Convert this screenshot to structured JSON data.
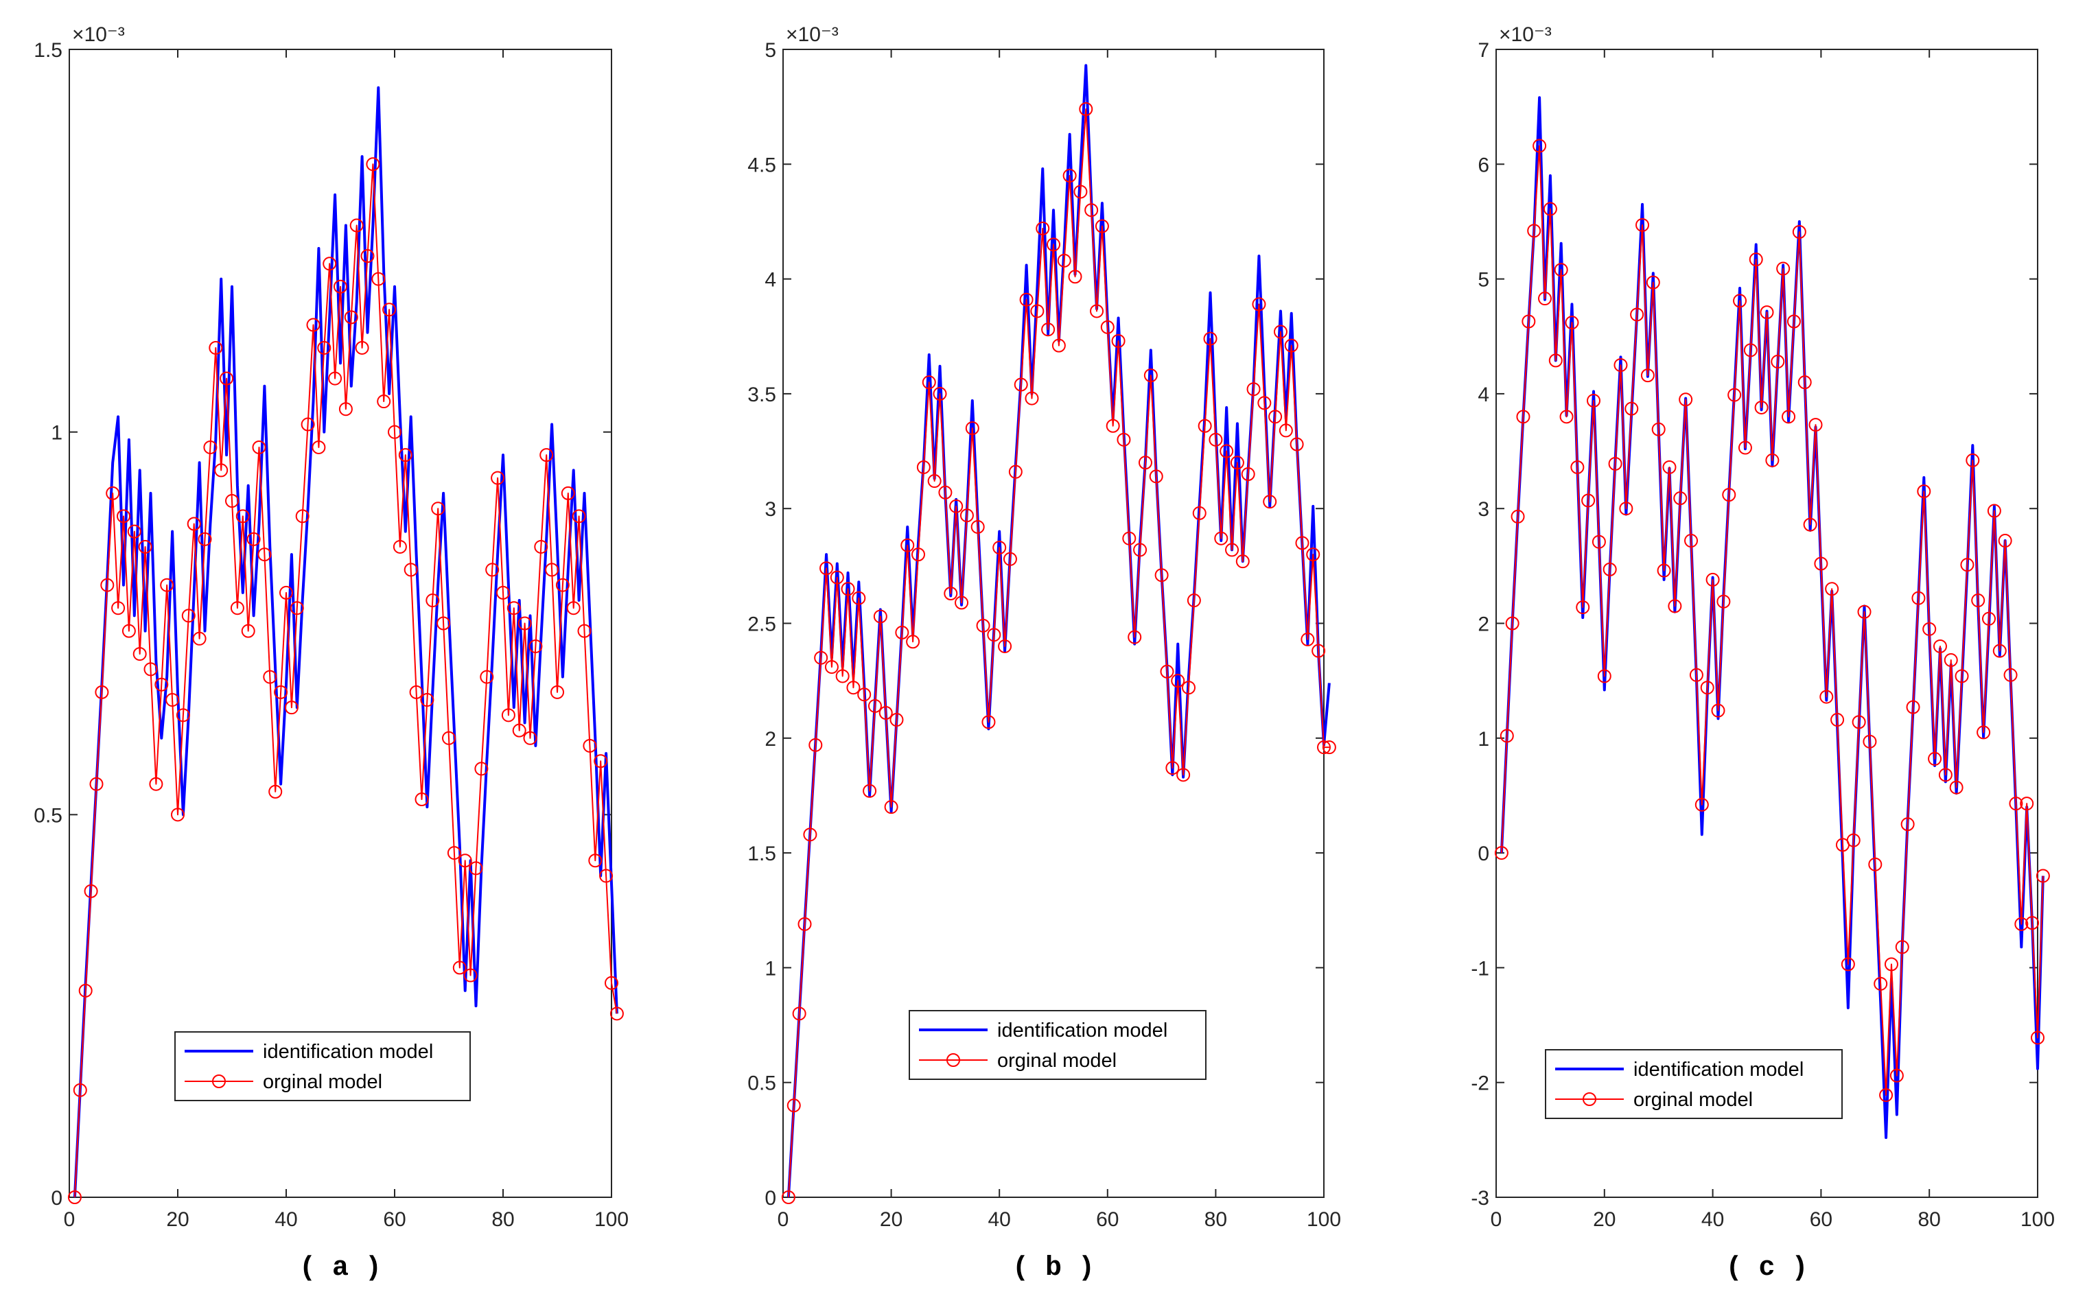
{
  "figure": {
    "background": "#ffffff"
  },
  "chart_data": [
    {
      "type": "line",
      "panel": "a",
      "caption": "( a )",
      "exponent": "×10⁻³",
      "x_start": 1,
      "xlim": [
        0,
        100
      ],
      "xticks": [
        0,
        20,
        40,
        60,
        80,
        100
      ],
      "ylim": [
        0,
        1.5
      ],
      "yticks": [
        0,
        0.5,
        1,
        1.5
      ],
      "ytick_labels": [
        "0",
        "0.5",
        "1",
        "1.5"
      ],
      "legend_position": "lower-middle",
      "series": [
        {
          "name": "identification model",
          "color": "#0000ff",
          "style": "line",
          "values": [
            0,
            0.14,
            0.28,
            0.41,
            0.54,
            0.67,
            0.81,
            0.96,
            1.02,
            0.8,
            0.99,
            0.76,
            0.95,
            0.74,
            0.92,
            0.7,
            0.6,
            0.68,
            0.87,
            0.66,
            0.5,
            0.63,
            0.79,
            0.96,
            0.74,
            0.88,
            0.99,
            1.2,
            0.97,
            1.19,
            0.93,
            0.79,
            0.93,
            0.76,
            0.88,
            1.06,
            0.85,
            0.69,
            0.54,
            0.67,
            0.84,
            0.64,
            0.78,
            0.9,
            1.04,
            1.24,
            1.0,
            1.15,
            1.31,
            1.09,
            1.27,
            1.06,
            1.17,
            1.36,
            1.13,
            1.27,
            1.45,
            1.21,
            1.05,
            1.19,
            1.02,
            0.87,
            1.02,
            0.84,
            0.68,
            0.51,
            0.66,
            0.8,
            0.92,
            0.76,
            0.61,
            0.46,
            0.27,
            0.44,
            0.25,
            0.43,
            0.57,
            0.7,
            0.84,
            0.97,
            0.8,
            0.64,
            0.78,
            0.62,
            0.76,
            0.59,
            0.73,
            0.86,
            1.01,
            0.85,
            0.68,
            0.82,
            0.95,
            0.78,
            0.92,
            0.76,
            0.6,
            0.42,
            0.58,
            0.41,
            0.24
          ]
        },
        {
          "name": "orginal model",
          "color": "#ff0000",
          "style": "line-circle",
          "values": [
            0,
            0.14,
            0.27,
            0.4,
            0.54,
            0.66,
            0.8,
            0.92,
            0.77,
            0.89,
            0.74,
            0.87,
            0.71,
            0.85,
            0.69,
            0.54,
            0.67,
            0.8,
            0.65,
            0.5,
            0.63,
            0.76,
            0.88,
            0.73,
            0.86,
            0.98,
            1.11,
            0.95,
            1.07,
            0.91,
            0.77,
            0.89,
            0.74,
            0.86,
            0.98,
            0.84,
            0.68,
            0.53,
            0.66,
            0.79,
            0.64,
            0.77,
            0.89,
            1.01,
            1.14,
            0.98,
            1.11,
            1.22,
            1.07,
            1.19,
            1.03,
            1.15,
            1.27,
            1.11,
            1.23,
            1.35,
            1.2,
            1.04,
            1.16,
            1.0,
            0.85,
            0.97,
            0.82,
            0.66,
            0.52,
            0.65,
            0.78,
            0.9,
            0.75,
            0.6,
            0.45,
            0.3,
            0.44,
            0.29,
            0.43,
            0.56,
            0.68,
            0.82,
            0.94,
            0.79,
            0.63,
            0.77,
            0.61,
            0.75,
            0.6,
            0.72,
            0.85,
            0.97,
            0.82,
            0.66,
            0.8,
            0.92,
            0.77,
            0.89,
            0.74,
            0.59,
            0.44,
            0.57,
            0.42,
            0.28,
            0.24
          ]
        }
      ]
    },
    {
      "type": "line",
      "panel": "b",
      "caption": "( b )",
      "exponent": "×10⁻³",
      "x_start": 1,
      "xlim": [
        0,
        100
      ],
      "xticks": [
        0,
        20,
        40,
        60,
        80,
        100
      ],
      "ylim": [
        0,
        5
      ],
      "yticks": [
        0,
        0.5,
        1,
        1.5,
        2,
        2.5,
        3,
        3.5,
        4,
        4.5,
        5
      ],
      "ytick_labels": [
        "0",
        "0.5",
        "1",
        "1.5",
        "2",
        "2.5",
        "3",
        "3.5",
        "4",
        "4.5",
        "5"
      ],
      "legend_position": "lower-middle",
      "series": [
        {
          "name": "identification model",
          "color": "#0000ff",
          "style": "line",
          "values": [
            0,
            0.4,
            0.8,
            1.2,
            1.59,
            1.98,
            2.37,
            2.8,
            2.35,
            2.76,
            2.31,
            2.72,
            2.27,
            2.68,
            2.23,
            1.75,
            2.16,
            2.56,
            2.11,
            1.68,
            2.08,
            2.48,
            2.92,
            2.45,
            2.85,
            3.2,
            3.67,
            3.13,
            3.62,
            3.06,
            2.62,
            3.04,
            2.58,
            2.99,
            3.47,
            2.95,
            2.48,
            2.04,
            2.47,
            2.9,
            2.38,
            2.8,
            3.19,
            3.56,
            4.06,
            3.5,
            3.96,
            4.48,
            3.76,
            4.3,
            3.73,
            4.14,
            4.63,
            4.02,
            4.48,
            4.93,
            4.34,
            3.87,
            4.33,
            3.82,
            3.39,
            3.83,
            3.33,
            2.89,
            2.41,
            2.85,
            3.21,
            3.69,
            3.15,
            2.71,
            2.31,
            1.84,
            2.41,
            1.83,
            2.27,
            2.62,
            3.02,
            3.41,
            3.94,
            3.34,
            2.86,
            3.44,
            2.82,
            3.37,
            2.77,
            3.17,
            3.54,
            4.1,
            3.53,
            3.01,
            3.44,
            3.86,
            3.39,
            3.85,
            3.29,
            2.84,
            2.41,
            3.01,
            2.37,
            1.97,
            2.24
          ]
        },
        {
          "name": "orginal model",
          "color": "#ff0000",
          "style": "line-circle",
          "values": [
            0,
            0.4,
            0.8,
            1.19,
            1.58,
            1.97,
            2.35,
            2.74,
            2.31,
            2.7,
            2.27,
            2.65,
            2.22,
            2.61,
            2.19,
            1.77,
            2.14,
            2.53,
            2.11,
            1.7,
            2.08,
            2.46,
            2.84,
            2.42,
            2.8,
            3.18,
            3.55,
            3.12,
            3.5,
            3.07,
            2.63,
            3.01,
            2.59,
            2.97,
            3.35,
            2.92,
            2.49,
            2.07,
            2.45,
            2.83,
            2.4,
            2.78,
            3.16,
            3.54,
            3.91,
            3.48,
            3.86,
            4.22,
            3.78,
            4.15,
            3.71,
            4.08,
            4.45,
            4.01,
            4.38,
            4.74,
            4.3,
            3.86,
            4.23,
            3.79,
            3.36,
            3.73,
            3.3,
            2.87,
            2.44,
            2.82,
            3.2,
            3.58,
            3.14,
            2.71,
            2.29,
            1.87,
            2.25,
            1.84,
            2.22,
            2.6,
            2.98,
            3.36,
            3.74,
            3.3,
            2.87,
            3.25,
            2.82,
            3.2,
            2.77,
            3.15,
            3.52,
            3.89,
            3.46,
            3.03,
            3.4,
            3.77,
            3.34,
            3.71,
            3.28,
            2.85,
            2.43,
            2.8,
            2.38,
            1.96,
            1.96
          ]
        }
      ]
    },
    {
      "type": "line",
      "panel": "c",
      "caption": "( c )",
      "exponent": "×10⁻³",
      "x_start": 1,
      "xlim": [
        0,
        100
      ],
      "xticks": [
        0,
        20,
        40,
        60,
        80,
        100
      ],
      "ylim": [
        -3,
        7
      ],
      "yticks": [
        -3,
        -2,
        -1,
        0,
        1,
        2,
        3,
        4,
        5,
        6,
        7
      ],
      "ytick_labels": [
        "-3",
        "-2",
        "-1",
        "0",
        "1",
        "2",
        "3",
        "4",
        "5",
        "6",
        "7"
      ],
      "legend_position": "lower-middle",
      "series": [
        {
          "name": "identification model",
          "color": "#0000ff",
          "style": "line",
          "values": [
            0,
            1.02,
            2.01,
            2.92,
            3.8,
            4.63,
            5.42,
            6.58,
            4.82,
            5.9,
            4.29,
            5.31,
            3.81,
            4.78,
            3.36,
            2.05,
            3.07,
            4.02,
            2.72,
            1.42,
            2.47,
            3.42,
            4.32,
            2.95,
            3.83,
            4.69,
            5.65,
            4.15,
            5.05,
            3.69,
            2.38,
            3.35,
            2.1,
            3.07,
            3.96,
            2.73,
            1.52,
            0.16,
            1.39,
            2.4,
            1.17,
            2.24,
            3.14,
            4.02,
            4.92,
            3.52,
            4.37,
            5.3,
            3.86,
            4.72,
            3.37,
            4.26,
            5.12,
            3.76,
            4.62,
            5.5,
            4.11,
            2.81,
            3.71,
            2.48,
            1.33,
            2.28,
            1.11,
            -0.06,
            -1.35,
            0.08,
            1.1,
            2.15,
            0.95,
            -0.2,
            -1.3,
            -2.48,
            -1.1,
            -2.28,
            -0.8,
            0.28,
            1.25,
            2.24,
            3.27,
            1.91,
            0.76,
            1.78,
            0.62,
            1.64,
            0.52,
            1.49,
            2.46,
            3.55,
            2.16,
            1.01,
            1.98,
            3.02,
            1.72,
            2.72,
            1.53,
            0.39,
            -0.82,
            0.4,
            -0.62,
            -1.88,
            -0.2
          ]
        },
        {
          "name": "orginal model",
          "color": "#ff0000",
          "style": "line-circle",
          "values": [
            0,
            1.02,
            2.0,
            2.93,
            3.8,
            4.63,
            5.42,
            6.16,
            4.83,
            5.61,
            4.29,
            5.08,
            3.8,
            4.62,
            3.36,
            2.14,
            3.07,
            3.94,
            2.71,
            1.54,
            2.47,
            3.39,
            4.25,
            3.0,
            3.87,
            4.69,
            5.47,
            4.16,
            4.97,
            3.69,
            2.46,
            3.36,
            2.15,
            3.09,
            3.95,
            2.72,
            1.55,
            0.42,
            1.44,
            2.38,
            1.24,
            2.19,
            3.12,
            3.99,
            4.81,
            3.53,
            4.38,
            5.17,
            3.88,
            4.71,
            3.42,
            4.28,
            5.09,
            3.8,
            4.63,
            5.41,
            4.1,
            2.86,
            3.73,
            2.52,
            1.36,
            2.3,
            1.16,
            0.07,
            -0.97,
            0.11,
            1.14,
            2.1,
            0.97,
            -0.1,
            -1.14,
            -2.11,
            -0.97,
            -1.94,
            -0.82,
            0.25,
            1.27,
            2.22,
            3.15,
            1.95,
            0.82,
            1.8,
            0.68,
            1.68,
            0.57,
            1.54,
            2.51,
            3.42,
            2.2,
            1.05,
            2.04,
            2.98,
            1.76,
            2.72,
            1.55,
            0.43,
            -0.62,
            0.43,
            -0.61,
            -1.61,
            -0.2
          ]
        }
      ]
    }
  ]
}
